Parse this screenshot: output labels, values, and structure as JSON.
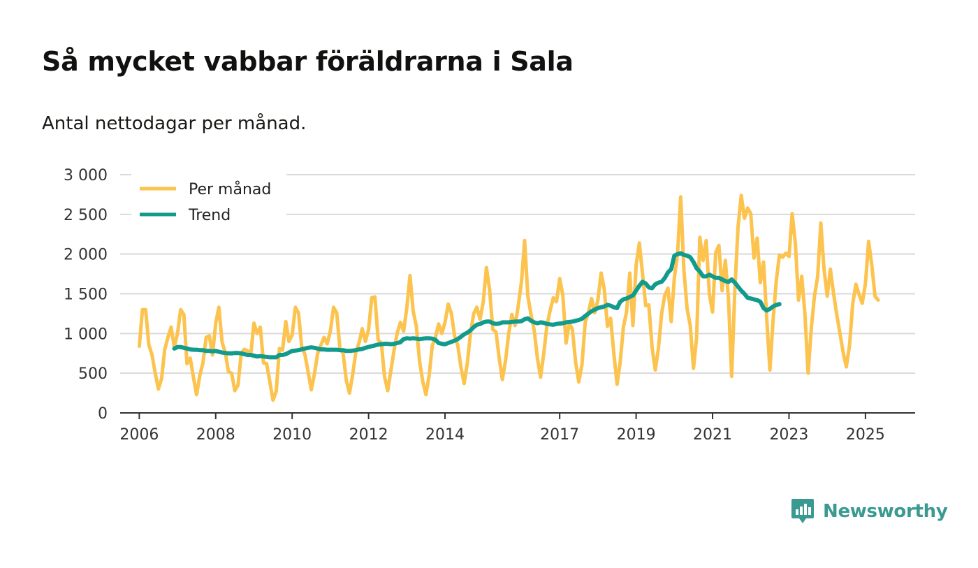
{
  "title": "Så mycket vabbar föräldrarna i Sala",
  "subtitle": "Antal nettodagar per månad.",
  "brand": "Newsworthy",
  "colors": {
    "monthly": "#fcc34f",
    "trend": "#129a8d",
    "grid": "#d9d9d9",
    "axis": "#333333",
    "brand": "#3a9a92"
  },
  "chart_data": {
    "type": "line",
    "title": "Så mycket vabbar föräldrarna i Sala",
    "subtitle": "Antal nettodagar per månad.",
    "xlabel": "",
    "ylabel": "",
    "xlim": [
      2005.5,
      2026.3
    ],
    "ylim": [
      0,
      3000
    ],
    "y_ticks": [
      0,
      500,
      1000,
      1500,
      2000,
      2500,
      3000
    ],
    "y_tick_labels": [
      "0",
      "500",
      "1 000",
      "1 500",
      "2 000",
      "2 500",
      "3 000"
    ],
    "x_ticks": [
      2006,
      2008,
      2010,
      2012,
      2014,
      2017,
      2019,
      2021,
      2023,
      2025
    ],
    "x_tick_labels": [
      "2006",
      "2008",
      "2010",
      "2012",
      "2014",
      "2017",
      "2019",
      "2021",
      "2023",
      "2025"
    ],
    "grid": true,
    "legend_position": "top-left",
    "series": [
      {
        "name": "Per månad",
        "start_year": 2006,
        "interval": "month",
        "values": [
          840,
          1300,
          1300,
          860,
          730,
          500,
          300,
          430,
          800,
          950,
          1080,
          830,
          1000,
          1300,
          1240,
          620,
          690,
          450,
          230,
          470,
          630,
          950,
          970,
          730,
          1130,
          1330,
          890,
          760,
          520,
          500,
          280,
          350,
          750,
          800,
          780,
          730,
          1130,
          1000,
          1080,
          630,
          620,
          390,
          160,
          270,
          810,
          790,
          1150,
          900,
          980,
          1330,
          1260,
          830,
          740,
          520,
          290,
          490,
          750,
          850,
          950,
          870,
          1030,
          1330,
          1260,
          810,
          750,
          410,
          250,
          480,
          770,
          880,
          1060,
          900,
          1050,
          1450,
          1460,
          920,
          880,
          460,
          280,
          530,
          790,
          1010,
          1140,
          1030,
          1320,
          1730,
          1280,
          1090,
          650,
          400,
          230,
          470,
          850,
          950,
          1120,
          1000,
          1140,
          1370,
          1250,
          970,
          850,
          580,
          370,
          630,
          1000,
          1250,
          1330,
          1180,
          1400,
          1830,
          1550,
          1050,
          1020,
          690,
          420,
          660,
          1000,
          1240,
          1100,
          1350,
          1650,
          2170,
          1470,
          1240,
          1040,
          690,
          450,
          750,
          1100,
          1290,
          1450,
          1400,
          1690,
          1480,
          880,
          1130,
          1050,
          640,
          390,
          610,
          1140,
          1260,
          1440,
          1260,
          1420,
          1760,
          1560,
          1090,
          1190,
          750,
          360,
          640,
          1080,
          1270,
          1760,
          1100,
          1860,
          2140,
          1760,
          1350,
          1360,
          830,
          540,
          810,
          1250,
          1480,
          1570,
          1150,
          1700,
          2000,
          2720,
          1800,
          1310,
          1100,
          560,
          950,
          2210,
          1920,
          2170,
          1490,
          1270,
          2020,
          2110,
          1540,
          1920,
          1440,
          460,
          1550,
          2340,
          2740,
          2450,
          2580,
          2510,
          1950,
          2200,
          1640,
          1900,
          1200,
          540,
          1170,
          1660,
          1990,
          1960,
          2010,
          1970,
          2510,
          2130,
          1420,
          1720,
          1250,
          500,
          1070,
          1470,
          1720,
          2390,
          1810,
          1470,
          1810,
          1500,
          1240,
          1000,
          760,
          580,
          850,
          1370,
          1620,
          1490,
          1380,
          1630,
          2160,
          1860,
          1470,
          1420
        ]
      },
      {
        "name": "Trend",
        "start_year": 2006.917,
        "interval": "month",
        "values": [
          810,
          830,
          830,
          820,
          810,
          800,
          795,
          795,
          790,
          790,
          780,
          780,
          775,
          780,
          770,
          760,
          755,
          750,
          750,
          755,
          755,
          750,
          740,
          730,
          730,
          720,
          710,
          715,
          710,
          705,
          700,
          700,
          700,
          730,
          730,
          740,
          760,
          780,
          785,
          790,
          800,
          810,
          820,
          825,
          820,
          810,
          800,
          800,
          795,
          795,
          795,
          795,
          790,
          790,
          780,
          780,
          785,
          790,
          800,
          805,
          820,
          830,
          840,
          850,
          860,
          865,
          870,
          870,
          865,
          870,
          880,
          890,
          930,
          940,
          935,
          940,
          935,
          930,
          935,
          940,
          940,
          935,
          920,
          880,
          870,
          865,
          880,
          895,
          910,
          930,
          960,
          990,
          1010,
          1040,
          1080,
          1110,
          1120,
          1140,
          1150,
          1150,
          1130,
          1120,
          1125,
          1140,
          1140,
          1140,
          1145,
          1150,
          1150,
          1155,
          1180,
          1190,
          1160,
          1140,
          1130,
          1140,
          1135,
          1120,
          1115,
          1110,
          1120,
          1125,
          1130,
          1140,
          1145,
          1150,
          1160,
          1170,
          1185,
          1220,
          1250,
          1280,
          1300,
          1320,
          1330,
          1340,
          1360,
          1350,
          1330,
          1320,
          1400,
          1430,
          1440,
          1460,
          1480,
          1540,
          1600,
          1650,
          1630,
          1580,
          1570,
          1620,
          1640,
          1650,
          1700,
          1770,
          1810,
          1980,
          2000,
          2010,
          1990,
          1980,
          1960,
          1900,
          1820,
          1780,
          1720,
          1720,
          1740,
          1720,
          1700,
          1700,
          1680,
          1660,
          1650,
          1680,
          1640,
          1590,
          1540,
          1500,
          1450,
          1440,
          1430,
          1420,
          1400,
          1320,
          1290,
          1310,
          1340,
          1360,
          1370
        ]
      }
    ]
  }
}
